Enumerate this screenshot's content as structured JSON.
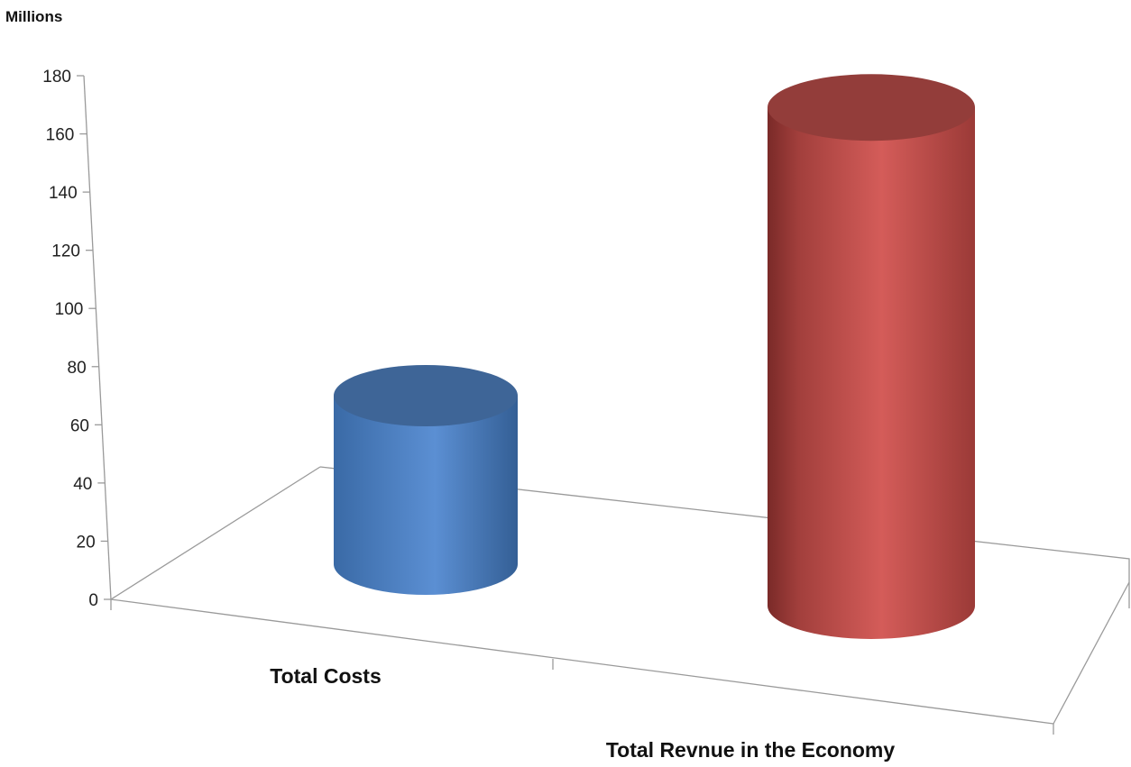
{
  "chart_data": {
    "type": "bar",
    "style": "3d-cylinder",
    "unit_label": "Millions",
    "categories": [
      "Total Costs",
      "Total Revnue in the Economy"
    ],
    "values": [
      59,
      167
    ],
    "colors": [
      "#4f81bd",
      "#c0504d"
    ],
    "yticks": [
      "0",
      "20",
      "40",
      "60",
      "80",
      "100",
      "120",
      "140",
      "160",
      "180"
    ],
    "ylim": [
      0,
      180
    ],
    "grid": false,
    "legend": "none"
  }
}
